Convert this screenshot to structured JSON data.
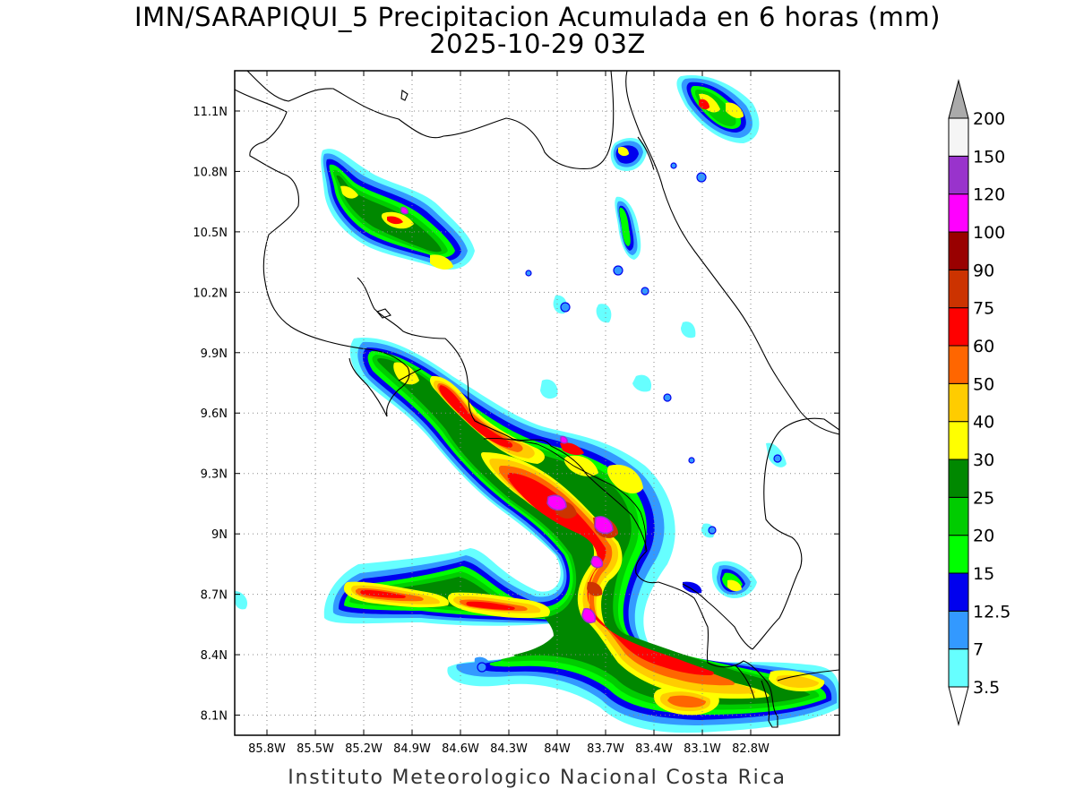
{
  "title": "IMN/SARAPIQUI_5 Precipitacion Acumulada en 6 horas (mm)",
  "subtitle": "2025-10-29 03Z",
  "footer": "Instituto Meteorologico Nacional Costa Rica",
  "map": {
    "lon_range": [
      -86.0,
      -82.25
    ],
    "lat_range": [
      8.0,
      11.3
    ],
    "lon_ticks": [
      {
        "value": -85.8,
        "label": "85.8W"
      },
      {
        "value": -85.5,
        "label": "85.5W"
      },
      {
        "value": -85.2,
        "label": "85.2W"
      },
      {
        "value": -84.9,
        "label": "84.9W"
      },
      {
        "value": -84.6,
        "label": "84.6W"
      },
      {
        "value": -84.3,
        "label": "84.3W"
      },
      {
        "value": -84.0,
        "label": "84W"
      },
      {
        "value": -83.7,
        "label": "83.7W"
      },
      {
        "value": -83.4,
        "label": "83.4W"
      },
      {
        "value": -83.1,
        "label": "83.1W"
      },
      {
        "value": -82.8,
        "label": "82.8W"
      }
    ],
    "lat_ticks": [
      {
        "value": 8.1,
        "label": "8.1N"
      },
      {
        "value": 8.4,
        "label": "8.4N"
      },
      {
        "value": 8.7,
        "label": "8.7N"
      },
      {
        "value": 9.0,
        "label": "9N"
      },
      {
        "value": 9.3,
        "label": "9.3N"
      },
      {
        "value": 9.6,
        "label": "9.6N"
      },
      {
        "value": 9.9,
        "label": "9.9N"
      },
      {
        "value": 10.2,
        "label": "10.2N"
      },
      {
        "value": 10.5,
        "label": "10.5N"
      },
      {
        "value": 10.8,
        "label": "10.8N"
      },
      {
        "value": 11.1,
        "label": "11.1N"
      }
    ]
  },
  "colorbar": {
    "unit": "mm",
    "levels": [
      {
        "label": "3.5",
        "color": "#66ffff"
      },
      {
        "label": "7",
        "color": "#3399ff"
      },
      {
        "label": "12.5",
        "color": "#0000ee"
      },
      {
        "label": "15",
        "color": "#00ff00"
      },
      {
        "label": "20",
        "color": "#00cc00"
      },
      {
        "label": "25",
        "color": "#008800"
      },
      {
        "label": "30",
        "color": "#ffff00"
      },
      {
        "label": "40",
        "color": "#ffcc00"
      },
      {
        "label": "50",
        "color": "#ff6600"
      },
      {
        "label": "60",
        "color": "#ff0000"
      },
      {
        "label": "75",
        "color": "#cc3300"
      },
      {
        "label": "90",
        "color": "#990000"
      },
      {
        "label": "100",
        "color": "#ff00ff"
      },
      {
        "label": "120",
        "color": "#9933cc"
      },
      {
        "label": "150",
        "color": "#f5f5f5"
      },
      {
        "label": "200",
        "color": "#aaaaaa"
      }
    ],
    "over_color": "#aaaaaa",
    "under_color": "#ffffff"
  }
}
